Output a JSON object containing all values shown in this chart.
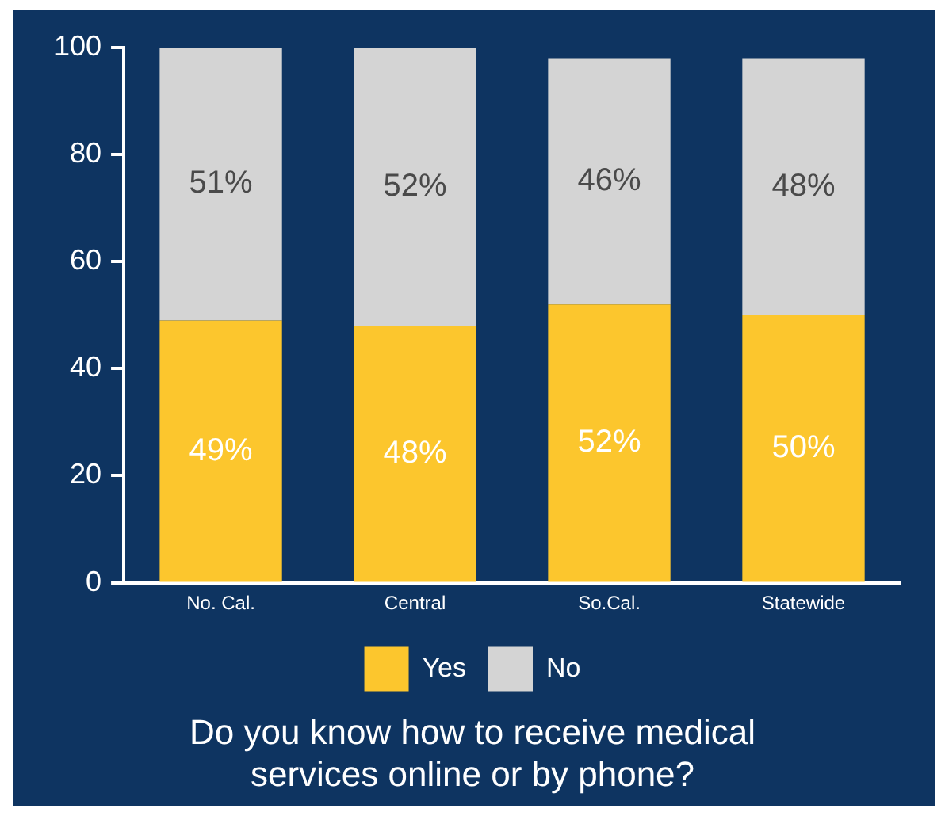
{
  "chart_data": {
    "type": "bar",
    "stacked": true,
    "title": "Do you know how to receive medical services online or by phone?",
    "categories": [
      "No. Cal.",
      "Central",
      "So.Cal.",
      "Statewide"
    ],
    "series": [
      {
        "name": "Yes",
        "color": "#fcc62d",
        "values": [
          49,
          48,
          52,
          50
        ],
        "value_labels": [
          "49%",
          "48%",
          "52%",
          "50%"
        ]
      },
      {
        "name": "No",
        "color": "#d4d4d4",
        "values": [
          51,
          52,
          46,
          48
        ],
        "value_labels": [
          "51%",
          "52%",
          "46%",
          "48%"
        ]
      }
    ],
    "ylim": [
      0,
      100
    ],
    "yticks": [
      0,
      20,
      40,
      60,
      80,
      100
    ],
    "grid": false,
    "legend": "bottom"
  }
}
